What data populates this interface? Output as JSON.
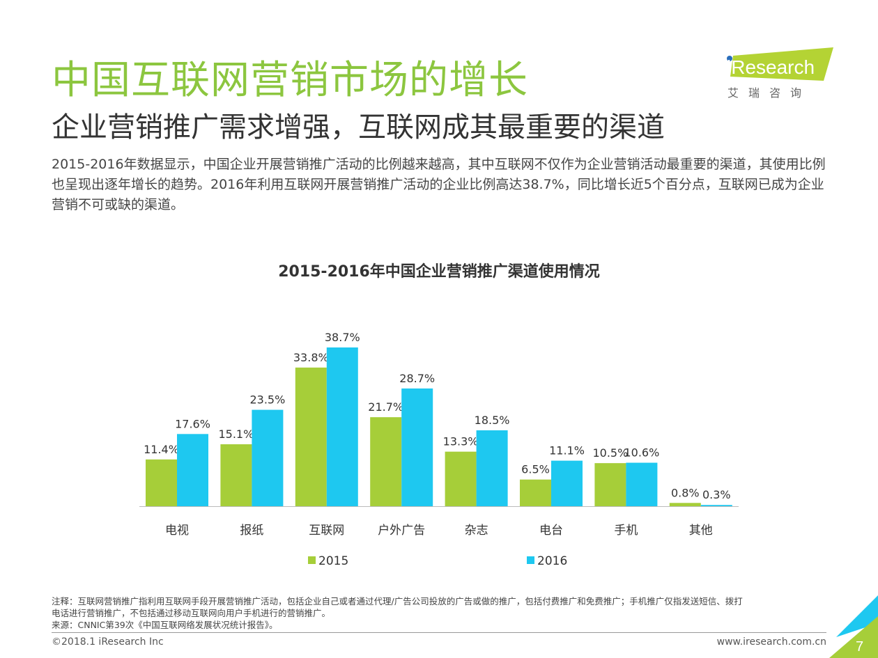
{
  "header": {
    "title": "中国互联网营销市场的增长",
    "subtitle": "企业营销推广需求增强，互联网成其最重要的渠道",
    "description": "2015-2016年数据显示，中国企业开展营销推广活动的比例越来越高，其中互联网不仅作为企业营销活动最重要的渠道，其使用比例也呈现出逐年增长的趋势。2016年利用互联网开展营销推广活动的企业比例高达38.7%，同比增长近5个百分点，互联网已成为企业营销不可或缺的渠道。"
  },
  "logo": {
    "text": "iResearch",
    "cn": "艾 瑞 咨 询"
  },
  "chart_data": {
    "type": "bar",
    "title": "2015-2016年中国企业营销推广渠道使用情况",
    "categories": [
      "电视",
      "报纸",
      "互联网",
      "户外广告",
      "杂志",
      "电台",
      "手机",
      "其他"
    ],
    "series": [
      {
        "name": "2015",
        "values": [
          11.4,
          15.1,
          33.8,
          21.7,
          13.3,
          6.5,
          10.5,
          0.8
        ],
        "labels": [
          "11.4%",
          "15.1%",
          "33.8%",
          "21.7%",
          "13.3%",
          "6.5%",
          "10.5%",
          "0.8%"
        ],
        "color": "#a6ce39"
      },
      {
        "name": "2016",
        "values": [
          17.6,
          23.5,
          38.7,
          28.7,
          18.5,
          11.1,
          10.6,
          0.3
        ],
        "labels": [
          "17.6%",
          "23.5%",
          "38.7%",
          "28.7%",
          "18.5%",
          "11.1%",
          "10.6%",
          "0.3%"
        ],
        "color": "#1ec8f0"
      }
    ],
    "unit": "%",
    "grid": false,
    "legend": "bottom"
  },
  "notes": {
    "note_line1": "注释：互联网营销推广指利用互联网手段开展营销推广活动，包括企业自己或者通过代理/广告公司投放的广告或做的推广，包括付费推广和免费推广；手机推广仅指发送短信、拨打",
    "note_line2": "电话进行营销推广，不包括通过移动互联网向用户手机进行的营销推广。",
    "source": "来源：CNNIC第39次《中国互联网络发展状况统计报告》。"
  },
  "footer": {
    "copyright": "©2018.1 iResearch Inc",
    "website": "www.iresearch.com.cn",
    "page_number": "7"
  },
  "colors": {
    "title": "#8cc63f",
    "green": "#a6ce39",
    "blue": "#1ec8f0"
  }
}
